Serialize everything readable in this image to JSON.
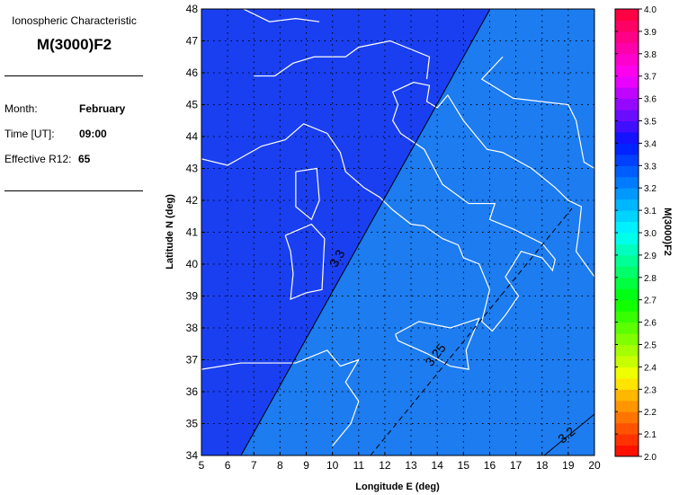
{
  "panel": {
    "heading": "Ionospheric Characteristic",
    "parameter": "M(3000)F2",
    "fields": [
      {
        "label": "Month:",
        "value": "February"
      },
      {
        "label": "Time [UT]:",
        "value": "09:00"
      },
      {
        "label": "Effective R12:",
        "value": "65"
      }
    ]
  },
  "map": {
    "xlabel": "Longitude E (deg)",
    "ylabel": "Latitude N (deg)",
    "xticks": [
      "5",
      "6",
      "7",
      "8",
      "9",
      "10",
      "11",
      "12",
      "13",
      "14",
      "15",
      "16",
      "17",
      "18",
      "19",
      "20"
    ],
    "yticks": [
      "48",
      "47",
      "46",
      "45",
      "44",
      "43",
      "42",
      "41",
      "40",
      "39",
      "38",
      "37",
      "36",
      "35",
      "34"
    ],
    "xlim": [
      5,
      20
    ],
    "ylim": [
      34,
      48
    ],
    "grid": true,
    "contours": [
      {
        "label": "3.3",
        "style": "solid"
      },
      {
        "label": "3.25",
        "style": "dashed"
      },
      {
        "label": "3.2",
        "style": "solid"
      }
    ],
    "colors": {
      "high": "#1a3ff0",
      "low": "#1c7cf0",
      "coast": "#ffffff"
    }
  },
  "colorbar": {
    "label": "M(3000)F2",
    "range": [
      2.0,
      4.0
    ],
    "ticks": [
      "4.0",
      "3.9",
      "3.8",
      "3.7",
      "3.6",
      "3.5",
      "3.4",
      "3.3",
      "3.2",
      "3.1",
      "3.0",
      "2.9",
      "2.8",
      "2.7",
      "2.6",
      "2.5",
      "2.4",
      "2.3",
      "2.2",
      "2.1",
      "2.0"
    ]
  }
}
